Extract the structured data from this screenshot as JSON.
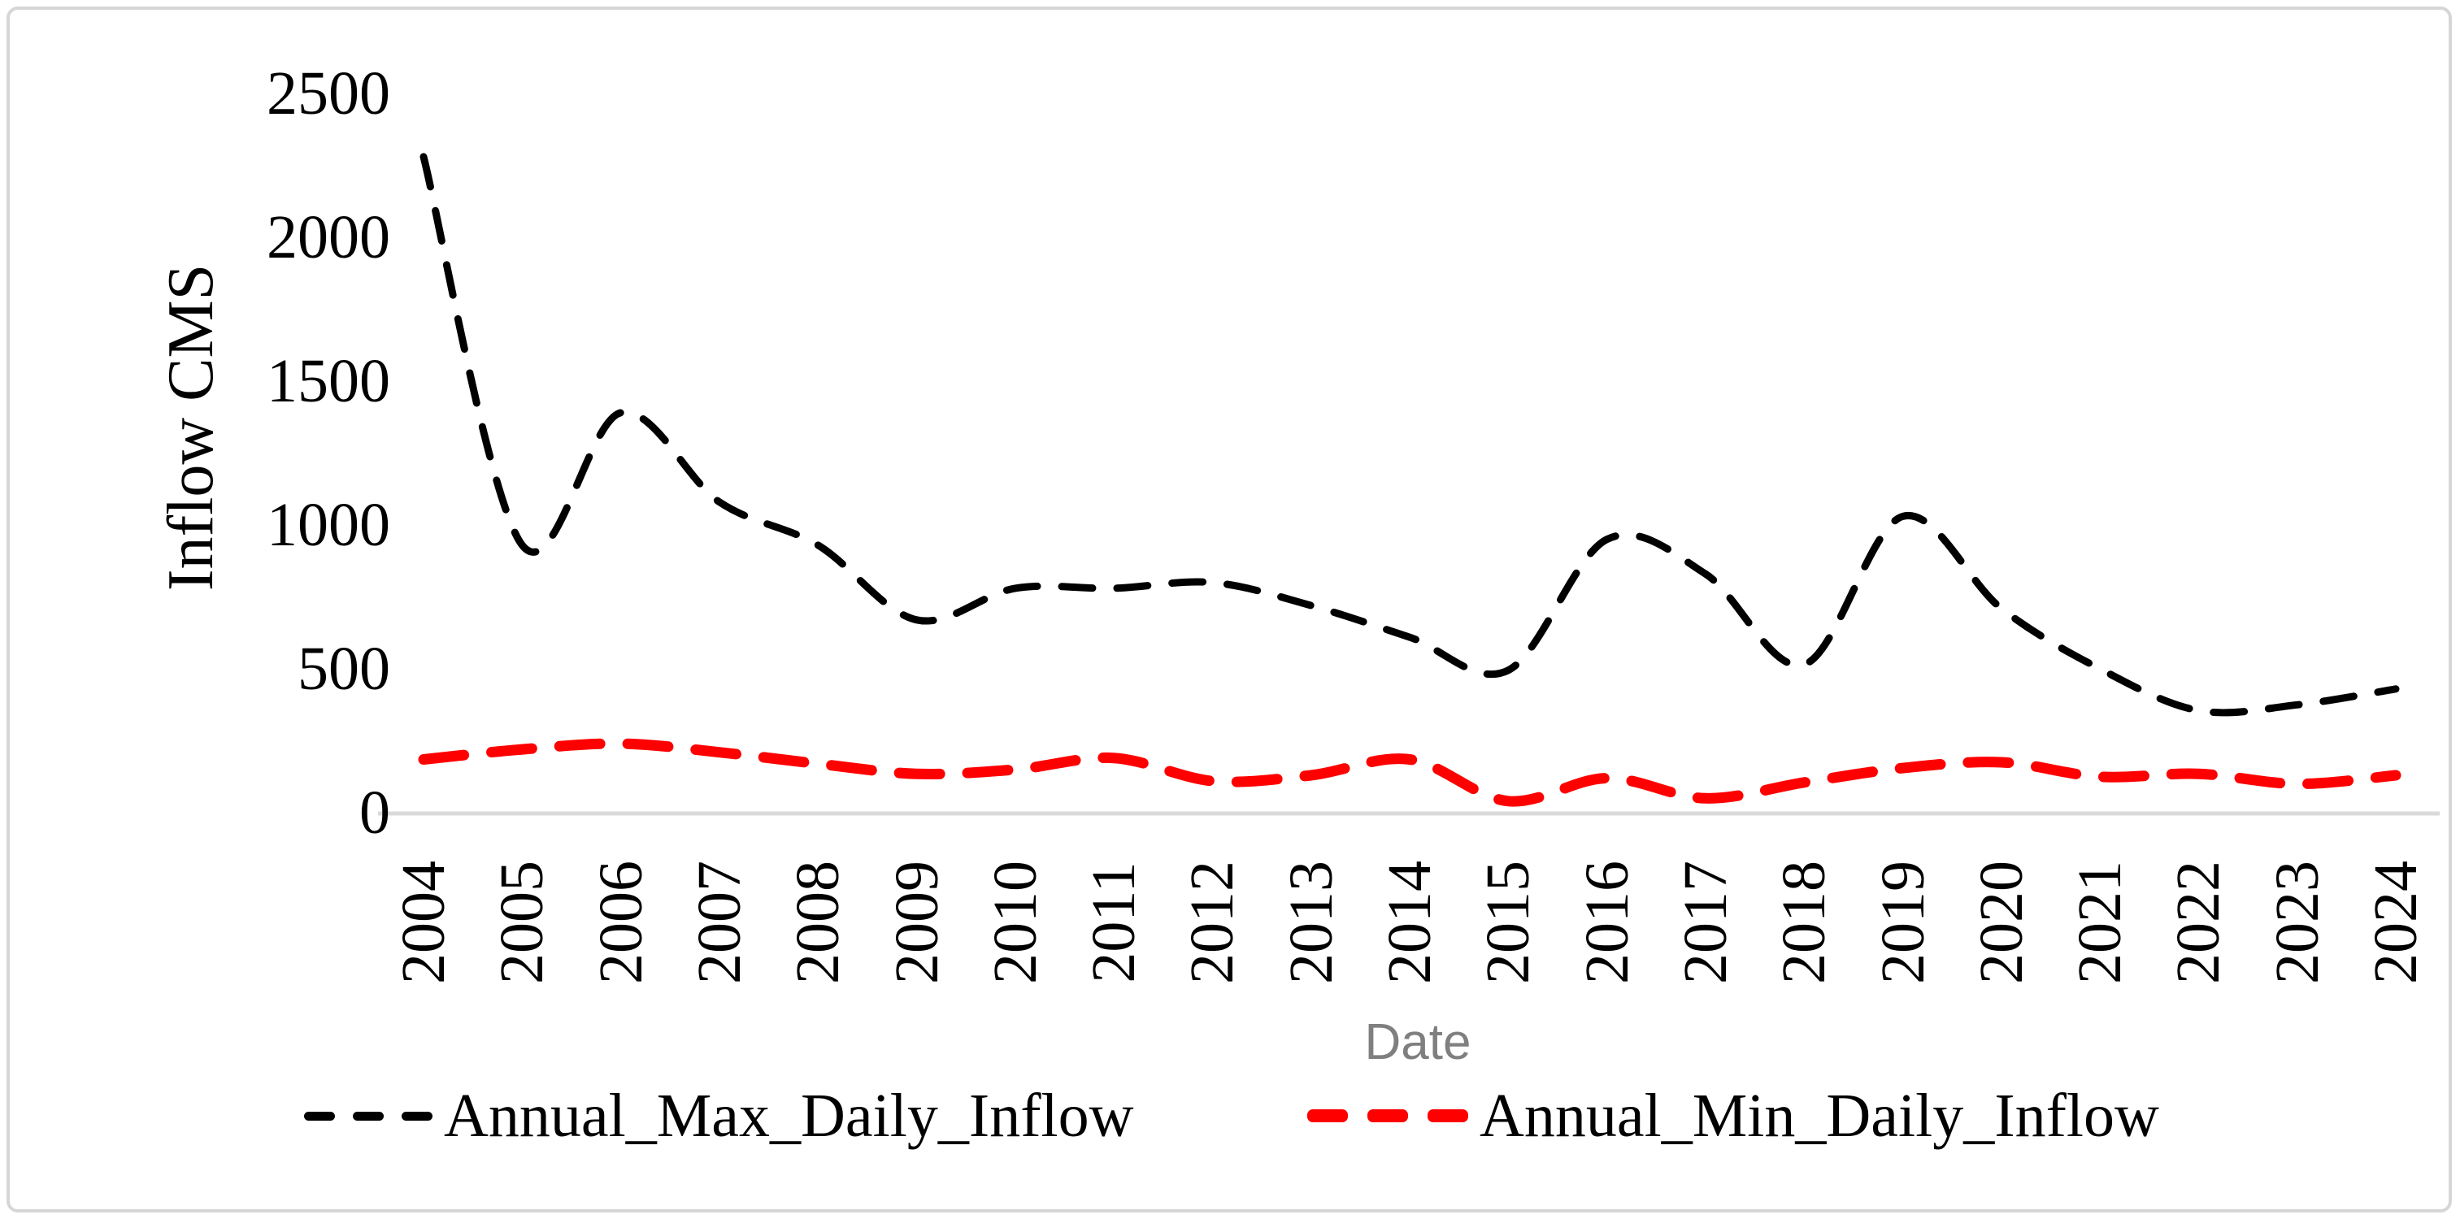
{
  "chart_data": {
    "type": "line",
    "title": "",
    "xlabel": "Date",
    "ylabel": "Inflow CMS",
    "ylim": [
      0,
      2500
    ],
    "yticks": [
      0,
      500,
      1000,
      1500,
      2000,
      2500
    ],
    "grid": false,
    "legend_position": "bottom",
    "categories": [
      2004,
      2005,
      2006,
      2007,
      2008,
      2009,
      2010,
      2011,
      2012,
      2013,
      2014,
      2015,
      2016,
      2017,
      2018,
      2019,
      2020,
      2021,
      2022,
      2023,
      2024
    ],
    "series": [
      {
        "name": "Annual_Max_Daily_Inflow",
        "color": "#000000",
        "line_style": "dashed",
        "values": [
          2280,
          930,
          1390,
          1080,
          930,
          670,
          780,
          780,
          800,
          720,
          610,
          495,
          950,
          830,
          515,
          1030,
          710,
          500,
          355,
          375,
          430
        ]
      },
      {
        "name": "Annual_Min_Daily_Inflow",
        "color": "#ff0000",
        "line_style": "dashed",
        "values": [
          185,
          220,
          240,
          210,
          170,
          135,
          150,
          190,
          110,
          130,
          185,
          40,
          120,
          50,
          105,
          155,
          175,
          125,
          135,
          100,
          130
        ]
      }
    ]
  },
  "colors": {
    "axis_line": "#d9d9d9",
    "frame_border": "#d6d6d6",
    "x_axis_title": "#7f7f7f",
    "text": "#000000",
    "background": "#ffffff"
  }
}
